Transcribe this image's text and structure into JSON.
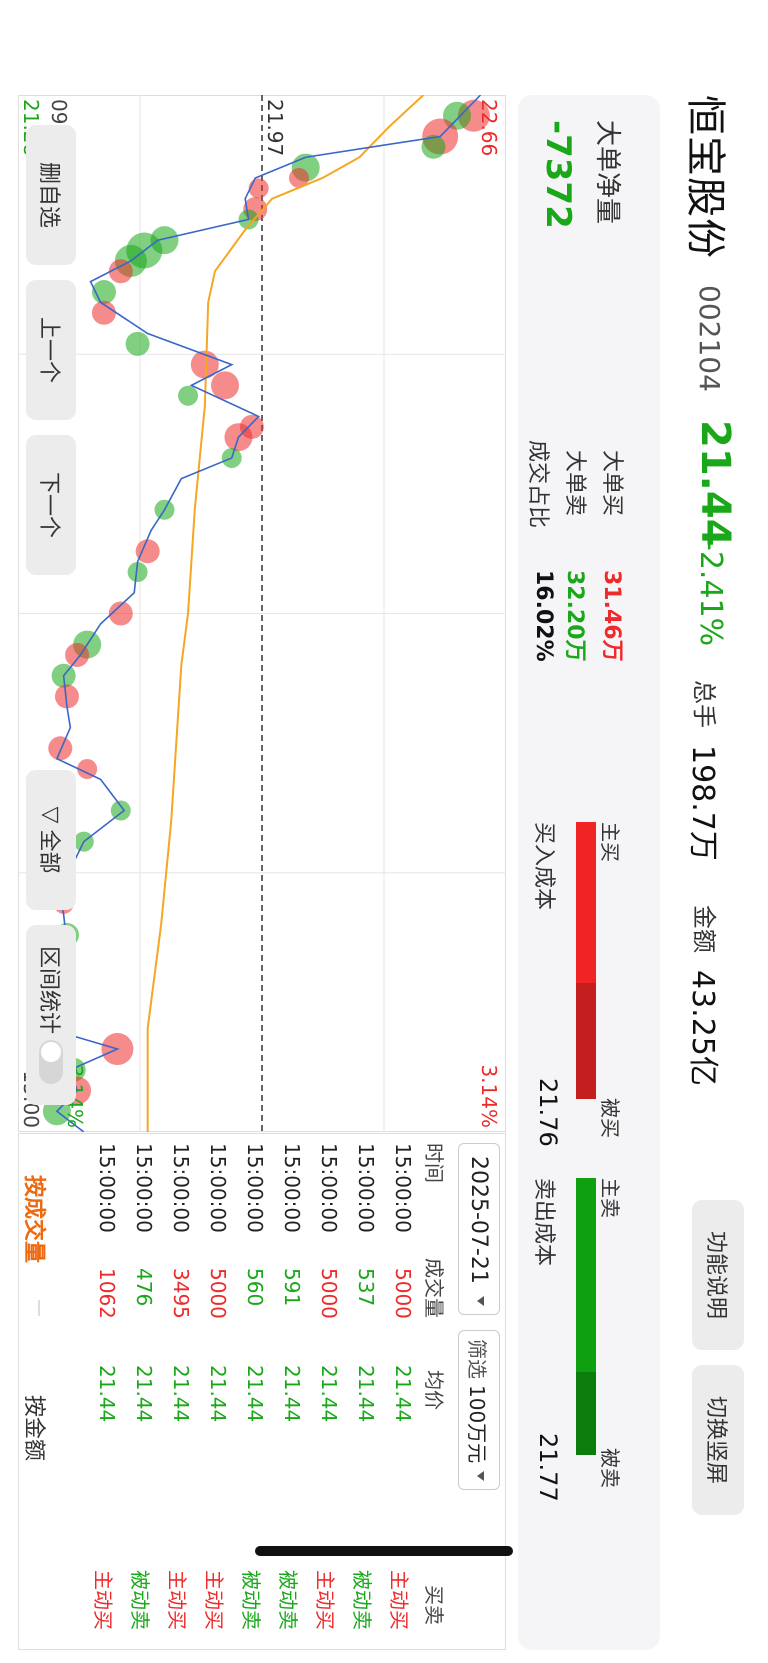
{
  "stock": {
    "name": "恒宝股份",
    "code": "002104",
    "price": "21.44",
    "change_pct": "-2.41%",
    "volume_label": "总手",
    "volume": "198.7万",
    "amount_label": "金额",
    "amount": "43.25亿"
  },
  "top_buttons": {
    "help": "功能说明",
    "portrait": "切换竖屏"
  },
  "summary": {
    "net_label": "大单净量",
    "net_value": "-7372",
    "big_buy_label": "大单买",
    "big_buy_value": "31.46万",
    "big_sell_label": "大单卖",
    "big_sell_value": "32.20万",
    "ratio_label": "成交占比",
    "ratio_value": "16.02%",
    "buy_bar": {
      "active_label": "主买",
      "passive_label": "被买",
      "cost_label": "买入成本",
      "cost_value": "21.76",
      "active_share": 0.58
    },
    "sell_bar": {
      "active_label": "主卖",
      "passive_label": "被卖",
      "cost_label": "卖出成本",
      "cost_value": "21.77",
      "active_share": 0.7
    }
  },
  "chart": {
    "y_max": "22.66",
    "y_min": "21.28",
    "ref_price": "21.97",
    "pct_max": "3.14%",
    "pct_min": "-3.14%",
    "time_start": "09:30",
    "time_end": "15:00"
  },
  "chart_data": {
    "type": "line",
    "xlabel": "",
    "ylabel": "",
    "xlim": [
      "09:30",
      "15:00"
    ],
    "ylim": [
      21.28,
      22.66
    ],
    "reference": 21.97,
    "series": [],
    "price_line": [
      [
        0,
        22.62
      ],
      [
        0.02,
        22.56
      ],
      [
        0.04,
        22.5
      ],
      [
        0.06,
        22.1
      ],
      [
        0.08,
        21.95
      ],
      [
        0.1,
        21.92
      ],
      [
        0.12,
        21.93
      ],
      [
        0.14,
        21.66
      ],
      [
        0.16,
        21.58
      ],
      [
        0.18,
        21.46
      ],
      [
        0.2,
        21.49
      ],
      [
        0.23,
        21.63
      ],
      [
        0.26,
        21.88
      ],
      [
        0.28,
        21.76
      ],
      [
        0.31,
        21.96
      ],
      [
        0.33,
        21.9
      ],
      [
        0.35,
        21.88
      ],
      [
        0.37,
        21.73
      ],
      [
        0.4,
        21.68
      ],
      [
        0.42,
        21.64
      ],
      [
        0.45,
        21.6
      ],
      [
        0.48,
        21.59
      ],
      [
        0.51,
        21.49
      ],
      [
        0.54,
        21.43
      ],
      [
        0.56,
        21.38
      ],
      [
        0.59,
        21.39
      ],
      [
        0.61,
        21.4
      ],
      [
        0.64,
        21.36
      ],
      [
        0.66,
        21.49
      ],
      [
        0.69,
        21.56
      ],
      [
        0.72,
        21.44
      ],
      [
        0.74,
        21.41
      ],
      [
        0.76,
        21.36
      ],
      [
        0.79,
        21.38
      ],
      [
        0.82,
        21.39
      ],
      [
        0.85,
        21.37
      ],
      [
        0.88,
        21.36
      ],
      [
        0.9,
        21.33
      ],
      [
        0.92,
        21.54
      ],
      [
        0.94,
        21.4
      ],
      [
        0.96,
        21.42
      ],
      [
        0.98,
        21.36
      ],
      [
        1,
        21.44
      ]
    ],
    "avg_line": [
      [
        0,
        22.45
      ],
      [
        0.03,
        22.35
      ],
      [
        0.06,
        22.26
      ],
      [
        0.08,
        22.15
      ],
      [
        0.1,
        22.0
      ],
      [
        0.13,
        21.92
      ],
      [
        0.17,
        21.83
      ],
      [
        0.2,
        21.81
      ],
      [
        0.3,
        21.8
      ],
      [
        0.4,
        21.77
      ],
      [
        0.5,
        21.75
      ],
      [
        0.55,
        21.73
      ],
      [
        0.6,
        21.72
      ],
      [
        0.7,
        21.7
      ],
      [
        0.8,
        21.67
      ],
      [
        0.9,
        21.63
      ],
      [
        1,
        21.63
      ]
    ],
    "trades": [
      {
        "t": 0.02,
        "p": 22.6,
        "side": "sell",
        "size": 16
      },
      {
        "t": 0.02,
        "p": 22.55,
        "side": "buy",
        "size": 14
      },
      {
        "t": 0.04,
        "p": 22.5,
        "side": "sell",
        "size": 18
      },
      {
        "t": 0.05,
        "p": 22.48,
        "side": "buy",
        "size": 12
      },
      {
        "t": 0.07,
        "p": 22.1,
        "side": "buy",
        "size": 14
      },
      {
        "t": 0.08,
        "p": 22.08,
        "side": "sell",
        "size": 10
      },
      {
        "t": 0.09,
        "p": 21.96,
        "side": "sell",
        "size": 10
      },
      {
        "t": 0.11,
        "p": 21.95,
        "side": "sell",
        "size": 12
      },
      {
        "t": 0.12,
        "p": 21.93,
        "side": "buy",
        "size": 10
      },
      {
        "t": 0.14,
        "p": 21.68,
        "side": "buy",
        "size": 14
      },
      {
        "t": 0.15,
        "p": 21.62,
        "side": "buy",
        "size": 18
      },
      {
        "t": 0.16,
        "p": 21.58,
        "side": "buy",
        "size": 16
      },
      {
        "t": 0.17,
        "p": 21.55,
        "side": "sell",
        "size": 12
      },
      {
        "t": 0.19,
        "p": 21.5,
        "side": "buy",
        "size": 12
      },
      {
        "t": 0.21,
        "p": 21.5,
        "side": "sell",
        "size": 12
      },
      {
        "t": 0.24,
        "p": 21.6,
        "side": "buy",
        "size": 12
      },
      {
        "t": 0.26,
        "p": 21.8,
        "side": "sell",
        "size": 14
      },
      {
        "t": 0.28,
        "p": 21.86,
        "side": "sell",
        "size": 14
      },
      {
        "t": 0.29,
        "p": 21.75,
        "side": "buy",
        "size": 10
      },
      {
        "t": 0.32,
        "p": 21.94,
        "side": "sell",
        "size": 12
      },
      {
        "t": 0.33,
        "p": 21.9,
        "side": "sell",
        "size": 14
      },
      {
        "t": 0.35,
        "p": 21.88,
        "side": "buy",
        "size": 10
      },
      {
        "t": 0.4,
        "p": 21.68,
        "side": "buy",
        "size": 10
      },
      {
        "t": 0.44,
        "p": 21.63,
        "side": "sell",
        "size": 12
      },
      {
        "t": 0.46,
        "p": 21.6,
        "side": "buy",
        "size": 10
      },
      {
        "t": 0.5,
        "p": 21.55,
        "side": "sell",
        "size": 12
      },
      {
        "t": 0.53,
        "p": 21.45,
        "side": "buy",
        "size": 14
      },
      {
        "t": 0.54,
        "p": 21.42,
        "side": "sell",
        "size": 12
      },
      {
        "t": 0.56,
        "p": 21.38,
        "side": "buy",
        "size": 12
      },
      {
        "t": 0.58,
        "p": 21.39,
        "side": "sell",
        "size": 12
      },
      {
        "t": 0.63,
        "p": 21.37,
        "side": "sell",
        "size": 12
      },
      {
        "t": 0.65,
        "p": 21.45,
        "side": "sell",
        "size": 10
      },
      {
        "t": 0.69,
        "p": 21.55,
        "side": "buy",
        "size": 10
      },
      {
        "t": 0.72,
        "p": 21.44,
        "side": "buy",
        "size": 10
      },
      {
        "t": 0.75,
        "p": 21.36,
        "side": "buy",
        "size": 12
      },
      {
        "t": 0.78,
        "p": 21.38,
        "side": "sell",
        "size": 10
      },
      {
        "t": 0.81,
        "p": 21.39,
        "side": "buy",
        "size": 12
      },
      {
        "t": 0.84,
        "p": 21.37,
        "side": "buy",
        "size": 14
      },
      {
        "t": 0.87,
        "p": 21.36,
        "side": "buy",
        "size": 12
      },
      {
        "t": 0.89,
        "p": 21.32,
        "side": "sell",
        "size": 12
      },
      {
        "t": 0.92,
        "p": 21.54,
        "side": "sell",
        "size": 16
      },
      {
        "t": 0.94,
        "p": 21.41,
        "side": "buy",
        "size": 12
      },
      {
        "t": 0.96,
        "p": 21.42,
        "side": "sell",
        "size": 14
      },
      {
        "t": 0.98,
        "p": 21.36,
        "side": "buy",
        "size": 14
      }
    ]
  },
  "buttons": {
    "remove_watch": "删自选",
    "prev": "上一个",
    "next": "下一个",
    "filter_all": "全部",
    "interval_stat": "区间统计"
  },
  "table": {
    "date": "2025-07-21",
    "filter_label": "筛选",
    "filter_value": "100万元",
    "headers": [
      "时间",
      "成交量",
      "均价",
      "买卖"
    ],
    "rows": [
      {
        "time": "15:00:00",
        "vol": "5000",
        "avg": "21.44",
        "side": "主动买",
        "color": "#ee2b2b"
      },
      {
        "time": "15:00:00",
        "vol": "537",
        "avg": "21.44",
        "side": "被动卖",
        "color": "#1aa81a"
      },
      {
        "time": "15:00:00",
        "vol": "5000",
        "avg": "21.44",
        "side": "主动买",
        "color": "#ee2b2b"
      },
      {
        "time": "15:00:00",
        "vol": "591",
        "avg": "21.44",
        "side": "被动卖",
        "color": "#1aa81a"
      },
      {
        "time": "15:00:00",
        "vol": "560",
        "avg": "21.44",
        "side": "被动卖",
        "color": "#1aa81a"
      },
      {
        "time": "15:00:00",
        "vol": "5000",
        "avg": "21.44",
        "side": "主动买",
        "color": "#ee2b2b"
      },
      {
        "time": "15:00:00",
        "vol": "3495",
        "avg": "21.44",
        "side": "主动买",
        "color": "#ee2b2b"
      },
      {
        "time": "15:00:00",
        "vol": "476",
        "avg": "21.44",
        "side": "被动卖",
        "color": "#1aa81a"
      },
      {
        "time": "15:00:00",
        "vol": "1062",
        "avg": "21.44",
        "side": "主动买",
        "color": "#ee2b2b"
      }
    ],
    "tab_active": "按成交量",
    "tab_other": "按金额"
  },
  "colors": {
    "up": "#ee2b2b",
    "down": "#1aa81a",
    "accent": "#ee6a10",
    "avg_line": "#f5a623",
    "price_line": "#3a66c8"
  }
}
